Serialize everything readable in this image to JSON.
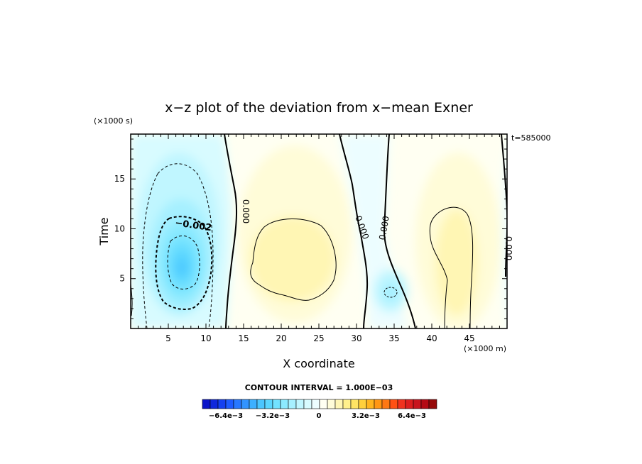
{
  "chart_data": {
    "type": "heatmap",
    "title": "x−z plot of the deviation from x−mean Exner",
    "xlabel": "X coordinate",
    "ylabel": "Time",
    "x_unit": "(×1000 m)",
    "y_unit": "(×1000 s)",
    "time_label": "t=585000",
    "xlim": [
      0,
      50
    ],
    "ylim": [
      0,
      19.5
    ],
    "xticks": [
      "5",
      "10",
      "15",
      "20",
      "25",
      "30",
      "35",
      "40",
      "45"
    ],
    "yticks": [
      "5",
      "10",
      "15"
    ],
    "contour_interval_label": "CONTOUR INTERVAL = 1.000E−03",
    "contour_labels": [
      "−0.002",
      "0.000",
      "0.000",
      "0.000",
      "0.000"
    ],
    "colorbar": {
      "tick_labels": [
        "−6.4e−3",
        "−3.2e−3",
        "0",
        "3.2e−3",
        "6.4e−3"
      ],
      "colors": [
        "#0a14c8",
        "#0f28dc",
        "#1440f0",
        "#1e5cff",
        "#2878ff",
        "#3294ff",
        "#3cb0ff",
        "#4ac6ff",
        "#5ad6ff",
        "#72e2ff",
        "#8ceaff",
        "#a6f0ff",
        "#c0f6ff",
        "#d8fbff",
        "#ecfdff",
        "#fffff2",
        "#fffcd8",
        "#fff6b4",
        "#fff08c",
        "#ffe464",
        "#ffd03c",
        "#ffb41e",
        "#ff9614",
        "#ff7814",
        "#ff5014",
        "#f0321e",
        "#dc1e1e",
        "#c8141e",
        "#b40a14",
        "#960a0a"
      ]
    },
    "field_extrema": [
      {
        "x": 6.8,
        "y": 6.3,
        "value": -0.0045
      },
      {
        "x": 22,
        "y": 8,
        "value": 0.0018
      },
      {
        "x": 44,
        "y": 8,
        "value": 0.0017
      },
      {
        "x": 34.5,
        "y": 3.5,
        "value": -0.0016
      },
      {
        "x": 34.5,
        "y": 16,
        "value": -0.0004
      },
      {
        "x": 21,
        "y": 17,
        "value": 0.0006
      },
      {
        "x": 45,
        "y": 17,
        "value": 0.0006
      },
      {
        "x": 2,
        "y": 12,
        "value": -0.0018
      }
    ]
  }
}
